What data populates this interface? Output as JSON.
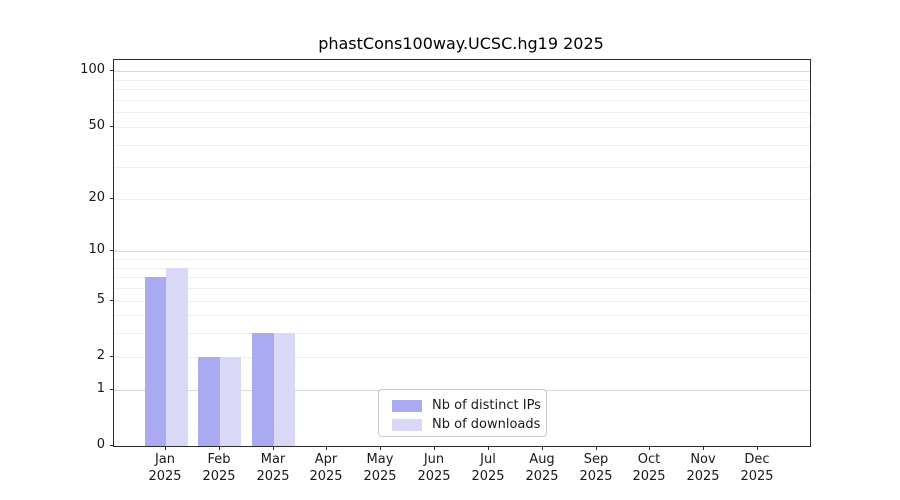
{
  "title": "phastCons100way.UCSC.hg19 2025",
  "chart_data": {
    "type": "bar",
    "title": "phastCons100way.UCSC.hg19 2025",
    "categories": [
      "Jan",
      "Feb",
      "Mar",
      "Apr",
      "May",
      "Jun",
      "Jul",
      "Aug",
      "Sep",
      "Oct",
      "Nov",
      "Dec"
    ],
    "category_year": "2025",
    "series": [
      {
        "name": "Nb of distinct IPs",
        "color": "#aaaaf2",
        "values": [
          7,
          2,
          3,
          0,
          0,
          0,
          0,
          0,
          0,
          0,
          0,
          0
        ]
      },
      {
        "name": "Nb of downloads",
        "color": "#d9d9f7",
        "values": [
          8,
          2,
          3,
          0,
          0,
          0,
          0,
          0,
          0,
          0,
          0,
          0
        ]
      }
    ],
    "y_axis": {
      "scale": "log1p",
      "ticks": [
        0,
        1,
        2,
        5,
        10,
        20,
        50,
        100
      ],
      "major_gridlines": [
        1,
        10,
        100
      ],
      "minor_gridlines": [
        2,
        3,
        4,
        5,
        6,
        7,
        8,
        9,
        20,
        30,
        40,
        50,
        60,
        70,
        80,
        90
      ],
      "max": 115
    },
    "xlabel": "",
    "ylabel": "",
    "grid": true,
    "legend_position": "lower center"
  },
  "colors": {
    "minor_grid": "#efefef",
    "major_grid": "#d8d8d8",
    "spine": "#2a2a2a",
    "bar_distinct_ips": "#aaaaf2",
    "bar_downloads": "#d9d9f7"
  }
}
